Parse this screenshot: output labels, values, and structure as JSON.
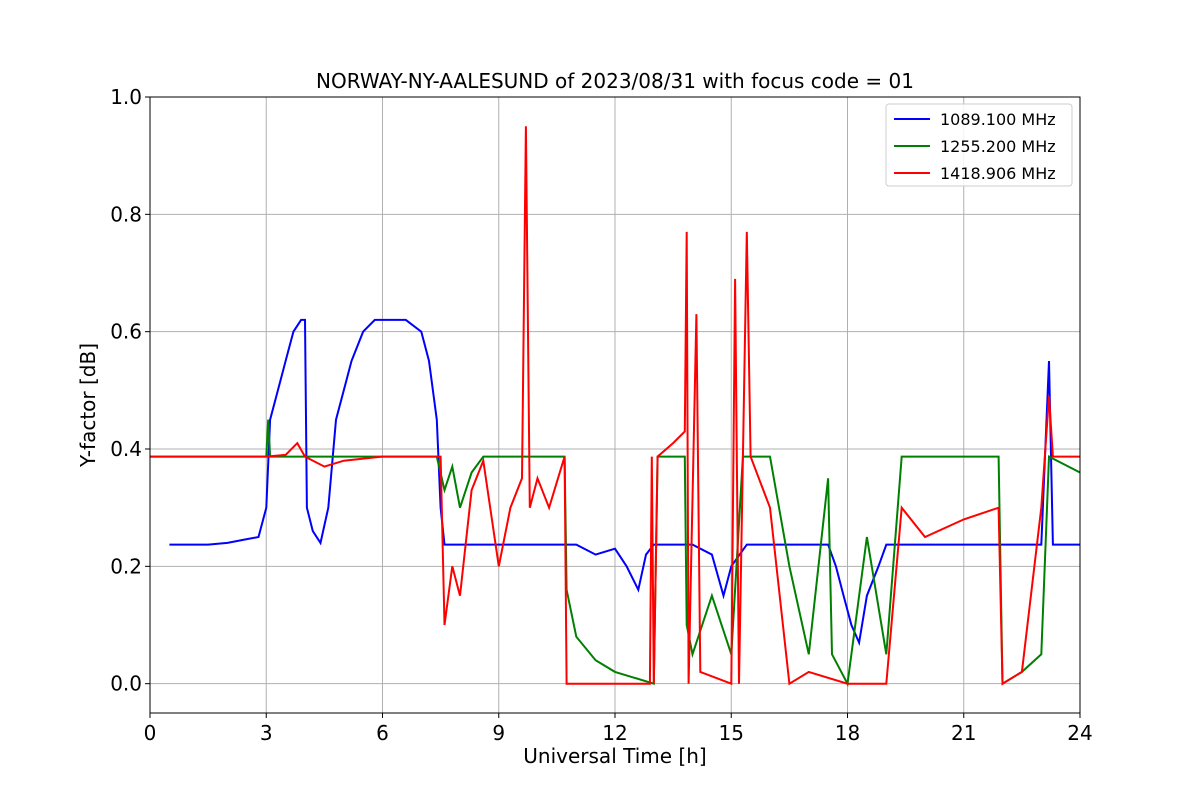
{
  "chart_data": {
    "type": "line",
    "title": "NORWAY-NY-AALESUND of 2023/08/31 with focus code = 01",
    "xlabel": "Universal Time [h]",
    "ylabel": "Y-factor [dB]",
    "xlim": [
      0,
      24
    ],
    "ylim": [
      -0.05,
      1.0
    ],
    "xticks": [
      0,
      3,
      6,
      9,
      12,
      15,
      18,
      21,
      24
    ],
    "xtick_labels": [
      "0",
      "3",
      "6",
      "9",
      "12",
      "15",
      "18",
      "21",
      "24"
    ],
    "yticks": [
      0.0,
      0.2,
      0.4,
      0.6,
      0.8,
      1.0
    ],
    "ytick_labels": [
      "0.0",
      "0.2",
      "0.4",
      "0.6",
      "0.8",
      "1.0"
    ],
    "grid": true,
    "legend_position": "top-right",
    "series": [
      {
        "name": "1089.100 MHz",
        "color": "#0000ff",
        "points": [
          [
            0.5,
            0.237
          ],
          [
            1.0,
            0.237
          ],
          [
            1.5,
            0.237
          ],
          [
            2.0,
            0.24
          ],
          [
            2.4,
            0.245
          ],
          [
            2.8,
            0.25
          ],
          [
            3.0,
            0.3
          ],
          [
            3.1,
            0.45
          ],
          [
            3.3,
            0.5
          ],
          [
            3.5,
            0.55
          ],
          [
            3.7,
            0.6
          ],
          [
            3.9,
            0.62
          ],
          [
            4.0,
            0.62
          ],
          [
            4.05,
            0.3
          ],
          [
            4.2,
            0.26
          ],
          [
            4.4,
            0.24
          ],
          [
            4.6,
            0.3
          ],
          [
            4.8,
            0.45
          ],
          [
            5.0,
            0.5
          ],
          [
            5.2,
            0.55
          ],
          [
            5.5,
            0.6
          ],
          [
            5.8,
            0.62
          ],
          [
            6.2,
            0.62
          ],
          [
            6.6,
            0.62
          ],
          [
            7.0,
            0.6
          ],
          [
            7.2,
            0.55
          ],
          [
            7.4,
            0.45
          ],
          [
            7.5,
            0.3
          ],
          [
            7.6,
            0.237
          ],
          [
            8.0,
            0.237
          ],
          [
            9.0,
            0.237
          ],
          [
            10.0,
            0.237
          ],
          [
            11.0,
            0.237
          ],
          [
            11.5,
            0.22
          ],
          [
            12.0,
            0.23
          ],
          [
            12.3,
            0.2
          ],
          [
            12.6,
            0.16
          ],
          [
            12.8,
            0.22
          ],
          [
            13.0,
            0.237
          ],
          [
            14.0,
            0.237
          ],
          [
            14.5,
            0.22
          ],
          [
            14.8,
            0.15
          ],
          [
            15.0,
            0.2
          ],
          [
            15.4,
            0.237
          ],
          [
            16.0,
            0.237
          ],
          [
            17.0,
            0.237
          ],
          [
            17.5,
            0.237
          ],
          [
            17.7,
            0.2
          ],
          [
            17.9,
            0.15
          ],
          [
            18.1,
            0.1
          ],
          [
            18.3,
            0.07
          ],
          [
            18.5,
            0.15
          ],
          [
            18.8,
            0.2
          ],
          [
            19.0,
            0.237
          ],
          [
            20.0,
            0.237
          ],
          [
            21.0,
            0.237
          ],
          [
            22.0,
            0.237
          ],
          [
            22.5,
            0.237
          ],
          [
            23.0,
            0.237
          ],
          [
            23.2,
            0.55
          ],
          [
            23.3,
            0.237
          ],
          [
            24.0,
            0.237
          ]
        ]
      },
      {
        "name": "1255.200 MHz",
        "color": "#008000",
        "points": [
          [
            0.0,
            0.387
          ],
          [
            1.0,
            0.387
          ],
          [
            2.0,
            0.387
          ],
          [
            3.0,
            0.387
          ],
          [
            3.05,
            0.45
          ],
          [
            3.1,
            0.387
          ],
          [
            4.0,
            0.387
          ],
          [
            5.0,
            0.387
          ],
          [
            6.0,
            0.387
          ],
          [
            7.0,
            0.387
          ],
          [
            7.4,
            0.387
          ],
          [
            7.6,
            0.33
          ],
          [
            7.8,
            0.37
          ],
          [
            8.0,
            0.3
          ],
          [
            8.3,
            0.36
          ],
          [
            8.6,
            0.387
          ],
          [
            9.0,
            0.387
          ],
          [
            10.0,
            0.387
          ],
          [
            10.7,
            0.387
          ],
          [
            10.75,
            0.16
          ],
          [
            11.0,
            0.08
          ],
          [
            11.5,
            0.04
          ],
          [
            12.0,
            0.02
          ],
          [
            12.5,
            0.01
          ],
          [
            13.0,
            0.0
          ],
          [
            13.1,
            0.387
          ],
          [
            13.8,
            0.387
          ],
          [
            13.85,
            0.1
          ],
          [
            14.0,
            0.05
          ],
          [
            14.5,
            0.15
          ],
          [
            15.0,
            0.05
          ],
          [
            15.3,
            0.387
          ],
          [
            16.0,
            0.387
          ],
          [
            16.5,
            0.2
          ],
          [
            17.0,
            0.05
          ],
          [
            17.5,
            0.35
          ],
          [
            17.6,
            0.05
          ],
          [
            18.0,
            0.0
          ],
          [
            18.5,
            0.25
          ],
          [
            19.0,
            0.05
          ],
          [
            19.4,
            0.387
          ],
          [
            20.0,
            0.387
          ],
          [
            21.0,
            0.387
          ],
          [
            21.9,
            0.387
          ],
          [
            22.0,
            0.0
          ],
          [
            22.5,
            0.02
          ],
          [
            23.0,
            0.05
          ],
          [
            23.2,
            0.387
          ],
          [
            24.0,
            0.36
          ]
        ]
      },
      {
        "name": "1418.906 MHz",
        "color": "#ff0000",
        "points": [
          [
            0.0,
            0.387
          ],
          [
            1.0,
            0.387
          ],
          [
            2.0,
            0.387
          ],
          [
            3.0,
            0.387
          ],
          [
            3.5,
            0.39
          ],
          [
            3.8,
            0.41
          ],
          [
            4.0,
            0.387
          ],
          [
            4.5,
            0.37
          ],
          [
            5.0,
            0.38
          ],
          [
            6.0,
            0.387
          ],
          [
            7.0,
            0.387
          ],
          [
            7.5,
            0.387
          ],
          [
            7.6,
            0.1
          ],
          [
            7.8,
            0.2
          ],
          [
            8.0,
            0.15
          ],
          [
            8.3,
            0.33
          ],
          [
            8.6,
            0.38
          ],
          [
            9.0,
            0.2
          ],
          [
            9.3,
            0.3
          ],
          [
            9.6,
            0.35
          ],
          [
            9.7,
            0.95
          ],
          [
            9.8,
            0.3
          ],
          [
            10.0,
            0.35
          ],
          [
            10.3,
            0.3
          ],
          [
            10.7,
            0.387
          ],
          [
            10.75,
            0.0
          ],
          [
            12.0,
            0.0
          ],
          [
            12.9,
            0.0
          ],
          [
            12.95,
            0.387
          ],
          [
            13.0,
            0.0
          ],
          [
            13.1,
            0.387
          ],
          [
            13.5,
            0.41
          ],
          [
            13.8,
            0.43
          ],
          [
            13.85,
            0.77
          ],
          [
            13.9,
            0.0
          ],
          [
            14.1,
            0.63
          ],
          [
            14.2,
            0.02
          ],
          [
            15.0,
            0.0
          ],
          [
            15.1,
            0.69
          ],
          [
            15.2,
            0.0
          ],
          [
            15.4,
            0.77
          ],
          [
            15.5,
            0.387
          ],
          [
            16.0,
            0.3
          ],
          [
            16.5,
            0.0
          ],
          [
            17.0,
            0.02
          ],
          [
            18.0,
            0.0
          ],
          [
            19.0,
            0.0
          ],
          [
            19.4,
            0.3
          ],
          [
            20.0,
            0.25
          ],
          [
            21.0,
            0.28
          ],
          [
            21.9,
            0.3
          ],
          [
            22.0,
            0.0
          ],
          [
            22.5,
            0.02
          ],
          [
            23.0,
            0.3
          ],
          [
            23.2,
            0.49
          ],
          [
            23.3,
            0.387
          ],
          [
            24.0,
            0.387
          ]
        ]
      }
    ]
  }
}
